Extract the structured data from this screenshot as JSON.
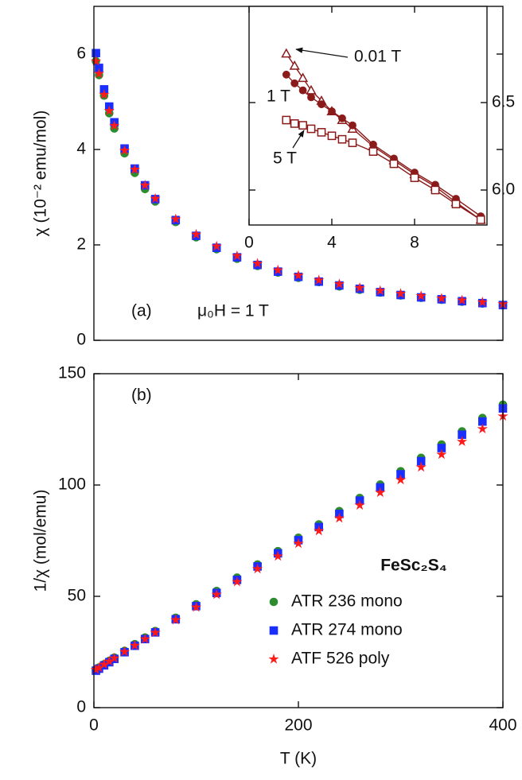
{
  "chart_data": [
    {
      "type": "scatter",
      "ylabel": "χ (10⁻² emu/mol)",
      "xlim": [
        0,
        400
      ],
      "ylim": [
        0,
        7
      ],
      "yticks": [
        0,
        2,
        4,
        6
      ],
      "annotations": [
        "(a)",
        "μ₀H = 1 T"
      ],
      "x": [
        2,
        5,
        10,
        15,
        20,
        30,
        40,
        50,
        60,
        80,
        100,
        120,
        140,
        160,
        180,
        200,
        220,
        240,
        260,
        280,
        300,
        320,
        340,
        360,
        380,
        400
      ],
      "series": [
        {
          "name": "ATR 236 mono",
          "color": "#2e8b2e",
          "marker": "circle",
          "values": [
            5.85,
            5.56,
            5.13,
            4.76,
            4.44,
            3.92,
            3.51,
            3.17,
            2.91,
            2.48,
            2.16,
            1.91,
            1.71,
            1.56,
            1.42,
            1.31,
            1.22,
            1.13,
            1.06,
            1.0,
            0.94,
            0.89,
            0.85,
            0.81,
            0.77,
            0.73
          ]
        },
        {
          "name": "ATR 274 mono",
          "color": "#1a2eff",
          "marker": "square",
          "values": [
            6.02,
            5.71,
            5.26,
            4.9,
            4.57,
            4.02,
            3.6,
            3.25,
            2.96,
            2.52,
            2.19,
            1.94,
            1.74,
            1.58,
            1.44,
            1.33,
            1.23,
            1.15,
            1.08,
            1.01,
            0.95,
            0.9,
            0.86,
            0.82,
            0.78,
            0.74
          ]
        },
        {
          "name": "ATF 526 poly",
          "color": "#ff1a1a",
          "marker": "star",
          "values": [
            5.85,
            5.59,
            5.15,
            4.81,
            4.5,
            3.98,
            3.58,
            3.25,
            2.97,
            2.54,
            2.22,
            1.97,
            1.77,
            1.61,
            1.47,
            1.36,
            1.26,
            1.18,
            1.1,
            1.04,
            0.98,
            0.93,
            0.88,
            0.84,
            0.8,
            0.76
          ]
        }
      ]
    },
    {
      "type": "line",
      "xlim": [
        0,
        11.5
      ],
      "ylim": [
        5.8,
        7.05
      ],
      "xticks": [
        0,
        4,
        8
      ],
      "yticks": [
        {
          "value": 6,
          "label": "6.0"
        },
        6.5
      ],
      "yaxis_side": "right",
      "annotations": [
        "0.01 T",
        "1 T",
        "5 T"
      ],
      "x": [
        1.8,
        2.2,
        2.6,
        3,
        3.5,
        4,
        4.5,
        5,
        6,
        7,
        8,
        9,
        10,
        11.2
      ],
      "series": [
        {
          "color": "#8b1a1a",
          "marker": "triangle",
          "filled": false,
          "values": [
            6.78,
            6.71,
            6.64,
            6.57,
            6.51,
            6.45,
            6.4,
            6.35,
            6.25,
            6.17,
            6.09,
            6.02,
            5.93,
            5.83
          ]
        },
        {
          "color": "#8b1a1a",
          "marker": "circle",
          "filled": true,
          "values": [
            6.66,
            6.61,
            6.57,
            6.53,
            6.49,
            6.45,
            6.41,
            6.37,
            6.26,
            6.18,
            6.1,
            6.03,
            5.95,
            5.85
          ]
        },
        {
          "color": "#8b1a1a",
          "marker": "square",
          "filled": false,
          "values": [
            6.4,
            6.38,
            6.37,
            6.35,
            6.33,
            6.31,
            6.29,
            6.27,
            6.22,
            6.15,
            6.07,
            6.0,
            5.92,
            5.83
          ]
        }
      ]
    },
    {
      "type": "scatter",
      "ylabel": "1/χ (mol/emu)",
      "xlabel": "T (K)",
      "xlim": [
        0,
        400
      ],
      "ylim": [
        0,
        150
      ],
      "xticks": [
        0,
        200,
        400
      ],
      "yticks": [
        0,
        50,
        100,
        150
      ],
      "annotations": [
        "(b)"
      ],
      "legend": "lower right",
      "legend_title": "FeSc₂S₄",
      "x": [
        2,
        5,
        10,
        15,
        20,
        30,
        40,
        50,
        60,
        80,
        100,
        120,
        140,
        160,
        180,
        200,
        220,
        240,
        260,
        280,
        300,
        320,
        340,
        360,
        380,
        400
      ],
      "series": [
        {
          "name": "ATR 236 mono",
          "color": "#2e8b2e",
          "marker": "circle",
          "values": [
            17.1,
            18.0,
            19.5,
            21.0,
            22.5,
            25.5,
            28.5,
            31.5,
            34.4,
            40.4,
            46.4,
            52.4,
            58.4,
            64.3,
            70.3,
            76.3,
            82.3,
            88.3,
            94.2,
            100.2,
            106.2,
            112.2,
            118.2,
            124.1,
            130.1,
            136.1
          ]
        },
        {
          "name": "ATR 274 mono",
          "color": "#1a2eff",
          "marker": "square",
          "values": [
            16.6,
            17.5,
            19.0,
            20.4,
            21.9,
            24.9,
            27.8,
            30.8,
            33.8,
            39.7,
            45.6,
            51.5,
            57.4,
            63.4,
            69.3,
            75.2,
            81.1,
            87.0,
            93.0,
            98.9,
            104.8,
            110.7,
            116.6,
            122.6,
            128.5,
            134.4
          ]
        },
        {
          "name": "ATF 526 poly",
          "color": "#ff1a1a",
          "marker": "star",
          "values": [
            17.1,
            17.9,
            19.4,
            20.8,
            22.2,
            25.1,
            27.9,
            30.8,
            33.7,
            39.4,
            45.1,
            50.8,
            56.5,
            62.3,
            68.0,
            73.7,
            79.4,
            85.1,
            90.9,
            96.6,
            102.3,
            108.0,
            113.7,
            119.5,
            125.2,
            130.9
          ]
        }
      ]
    }
  ]
}
